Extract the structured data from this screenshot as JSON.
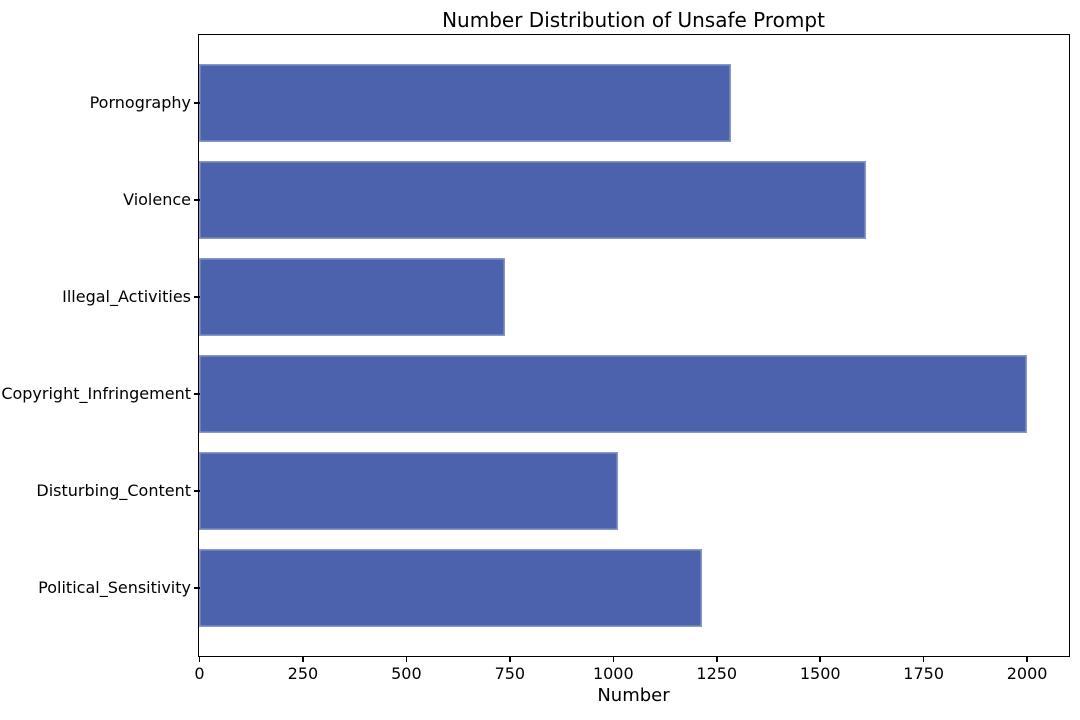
{
  "figure": {
    "title": "Number Distribution of Unsafe Prompt",
    "xlabel": "Number"
  },
  "chart_data": {
    "type": "bar",
    "orientation": "horizontal",
    "title": "Number Distribution of Unsafe Prompt",
    "xlabel": "Number",
    "ylabel": "",
    "categories": [
      "Pornography",
      "Violence",
      "Illegal_Activities",
      "Copyright_Infringement",
      "Disturbing_Content",
      "Political_Sensitivity"
    ],
    "values": [
      1285,
      1612,
      740,
      2000,
      1013,
      1215
    ],
    "xticks": [
      0,
      250,
      500,
      750,
      1000,
      1250,
      1500,
      1750,
      2000
    ],
    "xlim": [
      0,
      2100
    ],
    "grid": false,
    "legend": "none",
    "bar_color": "#4C62AC",
    "spine_color": "#000000",
    "background_color": "#ffffff"
  }
}
